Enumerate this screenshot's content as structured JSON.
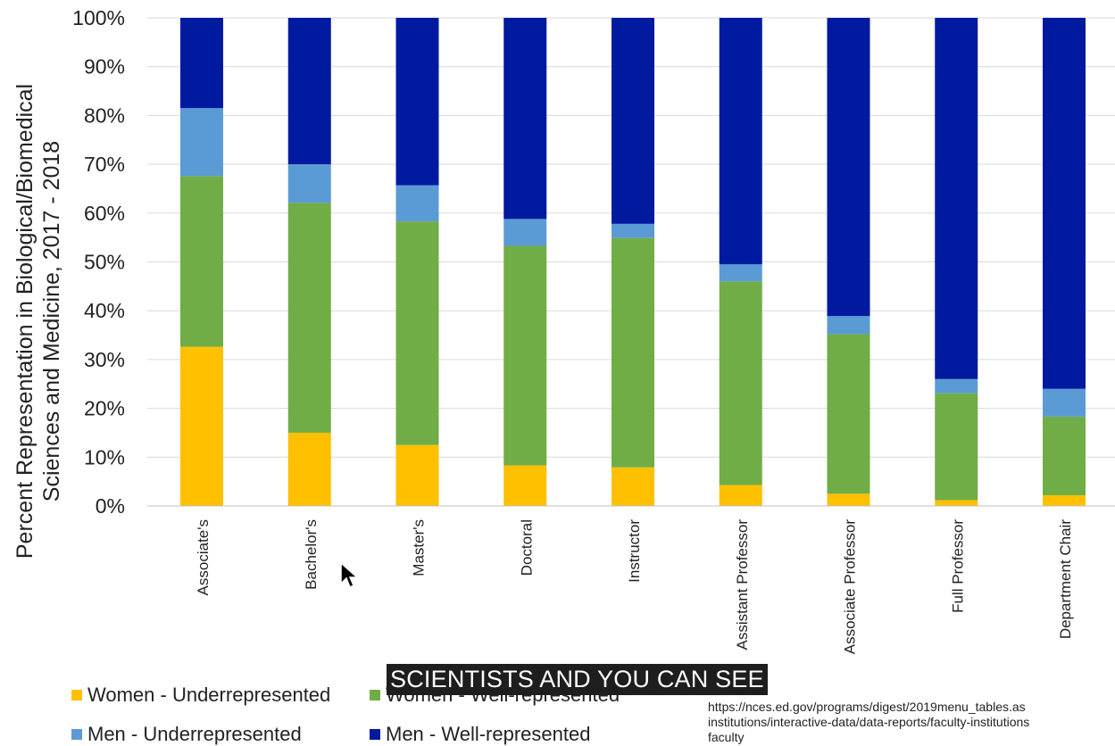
{
  "chart_data": {
    "type": "bar",
    "stacked": true,
    "categories": [
      "Associate's",
      "Bachelor's",
      "Master's",
      "Doctoral",
      "Instructor",
      "Assistant Professor",
      "Associate Professor",
      "Full Professor",
      "Department Chair"
    ],
    "series": [
      {
        "name": "Women - Underrepresented",
        "color": "#FFC000",
        "values": [
          32.6,
          15.0,
          12.5,
          8.3,
          7.9,
          4.3,
          2.5,
          1.2,
          2.2
        ]
      },
      {
        "name": "Women - Well-represented",
        "color": "#70AD47",
        "values": [
          35.0,
          47.1,
          45.8,
          45.0,
          47.0,
          41.7,
          32.7,
          21.9,
          16.1
        ]
      },
      {
        "name": "Men - Underrepresented",
        "color": "#5B9BD5",
        "values": [
          13.9,
          7.9,
          7.4,
          5.5,
          2.9,
          3.5,
          3.7,
          2.9,
          5.7
        ]
      },
      {
        "name": "Men - Well-represented",
        "color": "#001A9F",
        "values": [
          18.5,
          30.0,
          34.3,
          41.2,
          42.2,
          50.5,
          61.1,
          74.0,
          76.0
        ]
      }
    ],
    "ylabel": "Percent Representation in Biological/Biomedical Sciences and Medicine, 2017 - 2018",
    "ylabel_lines": [
      "Percent Representation in Biological/Biomedical",
      "Sciences and Medicine, 2017 - 2018"
    ],
    "ylim": [
      0,
      100
    ],
    "yticks": [
      "0%",
      "10%",
      "20%",
      "30%",
      "40%",
      "50%",
      "60%",
      "70%",
      "80%",
      "90%",
      "100%"
    ],
    "grid": true,
    "legend_position": "bottom"
  },
  "caption": "SCIENTISTS AND YOU CAN SEE",
  "source_lines": [
    "https://nces.ed.gov/programs/digest/2019menu_tables.as",
    "institutions/interactive-data/data-reports/faculty-institutions",
    "faculty"
  ]
}
